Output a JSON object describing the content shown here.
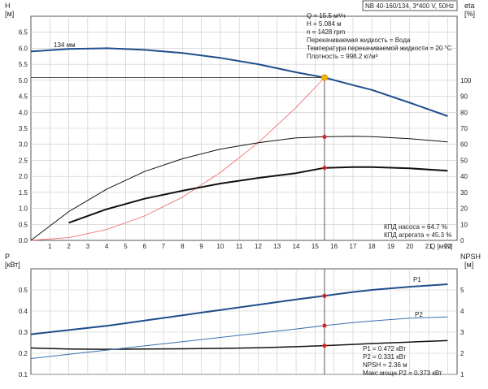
{
  "header": {
    "title": "NB 40-160/134, 3*400 V, 50Hz"
  },
  "colors": {
    "impeller_curve": "#1f4e8c",
    "p1_curve": "#1f4e8c",
    "p2_curve": "#3a6fb0",
    "system_curve": "#f07070",
    "eta_curves": "#111111",
    "marker_red": "#e02020",
    "marker_op": "#f5b800",
    "grid": "#c8c8c8",
    "axis": "#555555"
  },
  "info_top": [
    "Q = 15.5 м³/ч",
    "H = 5.084 м",
    "n = 1428 rpm",
    "Перекачиваемая жидкость = Вода",
    "Температура перекачиваемой жидкости = 20 °C",
    "Плотность = 998.2 кг/м³"
  ],
  "info_eff": [
    "КПД насоса = 64.7 %",
    "КПД агрегата = 45.3 %"
  ],
  "info_bottom": [
    "P1 = 0.472 кВт",
    "P2 = 0.331 кВт",
    "NPSH = 2.36 м",
    "Макс.мощн.P2 = 0.373 кВт"
  ],
  "chart_data": [
    {
      "type": "line",
      "panel": "head",
      "ylabel_left": [
        "H",
        "[м]"
      ],
      "ylabel_right": [
        "eta",
        "[%]"
      ],
      "xlabel": "Q [м³/ч]",
      "xlim": [
        0,
        22.5
      ],
      "ylim": [
        0,
        7
      ],
      "y2lim": [
        0,
        140
      ],
      "x_ticks": [
        1,
        2,
        3,
        4,
        5,
        6,
        7,
        8,
        9,
        10,
        11,
        12,
        13,
        14,
        15,
        16,
        17,
        18,
        19,
        20,
        21,
        22
      ],
      "y_ticks": [
        "0.0",
        "0.5",
        "1.0",
        "1.5",
        "2.0",
        "2.5",
        "3.0",
        "3.5",
        "4.0",
        "4.5",
        "5.0",
        "5.5",
        "6.0",
        "6.5"
      ],
      "y2_ticks": [
        0,
        10,
        20,
        30,
        40,
        50,
        60,
        70,
        80,
        90,
        100
      ],
      "curve_label": "134 мм",
      "operating_point": {
        "q": 15.5,
        "h": 5.084
      },
      "series": [
        {
          "role": "impeller",
          "axis": "left",
          "x": [
            0,
            2,
            4,
            6,
            8,
            10,
            12,
            14,
            15.5,
            17,
            18,
            20,
            22
          ],
          "y": [
            5.9,
            5.98,
            6.0,
            5.95,
            5.85,
            5.7,
            5.5,
            5.25,
            5.084,
            4.85,
            4.7,
            4.3,
            3.88
          ]
        },
        {
          "role": "system",
          "axis": "left",
          "x": [
            0,
            2,
            4,
            6,
            8,
            10,
            12,
            14,
            15.5
          ],
          "y": [
            0,
            0.085,
            0.34,
            0.76,
            1.35,
            2.12,
            3.05,
            4.15,
            5.084
          ]
        },
        {
          "role": "eta_pump",
          "axis": "right",
          "x": [
            0,
            2,
            4,
            6,
            8,
            10,
            12,
            14,
            15.5,
            17,
            18,
            20,
            22
          ],
          "y": [
            0,
            18,
            32,
            43,
            51,
            57,
            61,
            64,
            64.7,
            65,
            64.8,
            63.5,
            61.5
          ]
        },
        {
          "role": "eta_unit",
          "axis": "right",
          "x": [
            2,
            4,
            6,
            8,
            10,
            12,
            14,
            15.5,
            17,
            18,
            20,
            22
          ],
          "y": [
            11,
            19.5,
            26,
            31,
            35.5,
            39,
            42,
            45.3,
            45.8,
            45.8,
            45,
            43.5
          ]
        }
      ],
      "markers": [
        {
          "axis": "right",
          "x": 15.5,
          "y": 64.7
        },
        {
          "axis": "right",
          "x": 15.5,
          "y": 45.3
        }
      ]
    },
    {
      "type": "line",
      "panel": "power",
      "ylabel_left": [
        "P",
        "[кВт]"
      ],
      "ylabel_right": [
        "NPSH",
        "[м]"
      ],
      "xlim": [
        0,
        22.5
      ],
      "ylim": [
        0.1,
        0.6
      ],
      "y2lim": [
        1,
        6
      ],
      "y_ticks": [
        "0.1",
        "0.2",
        "0.3",
        "0.4",
        "0.5"
      ],
      "y2_ticks": [
        1,
        2,
        3,
        4,
        5
      ],
      "series": [
        {
          "name": "P1",
          "axis": "left",
          "x": [
            0,
            2,
            4,
            6,
            8,
            10,
            12,
            14,
            15.5,
            17,
            18,
            20,
            22
          ],
          "y": [
            0.29,
            0.31,
            0.33,
            0.355,
            0.38,
            0.405,
            0.43,
            0.455,
            0.472,
            0.49,
            0.5,
            0.515,
            0.527
          ]
        },
        {
          "name": "P2",
          "axis": "left",
          "x": [
            0,
            2,
            4,
            6,
            8,
            10,
            12,
            14,
            15.5,
            17,
            18,
            20,
            22
          ],
          "y": [
            0.175,
            0.195,
            0.215,
            0.235,
            0.255,
            0.275,
            0.295,
            0.315,
            0.331,
            0.345,
            0.353,
            0.366,
            0.372
          ]
        },
        {
          "role": "npsh",
          "axis": "right",
          "x": [
            0,
            2,
            4,
            6,
            8,
            10,
            12,
            14,
            15.5,
            17,
            18,
            20,
            22
          ],
          "y": [
            2.25,
            2.2,
            2.19,
            2.2,
            2.21,
            2.23,
            2.26,
            2.31,
            2.36,
            2.42,
            2.46,
            2.53,
            2.6
          ]
        }
      ],
      "markers": [
        {
          "axis": "left",
          "x": 15.5,
          "y": 0.472
        },
        {
          "axis": "left",
          "x": 15.5,
          "y": 0.331
        },
        {
          "axis": "right",
          "x": 15.5,
          "y": 2.36
        }
      ]
    }
  ]
}
